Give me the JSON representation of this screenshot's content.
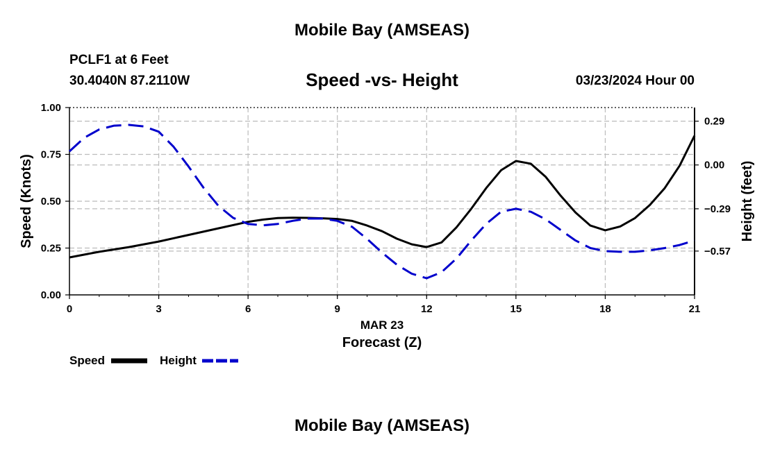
{
  "header": {
    "main_title": "Mobile Bay (AMSEAS)",
    "station": "PCLF1 at 6 Feet",
    "coordinates": "30.4040N  87.2110W",
    "subtitle": "Speed -vs- Height",
    "datetime": "03/23/2024 Hour 00"
  },
  "footer": {
    "main_title": "Mobile Bay (AMSEAS)"
  },
  "colors": {
    "speed": "#000000",
    "height": "#0000cc",
    "grid": "#bbbbbb"
  },
  "chart_data": {
    "type": "line",
    "title": "Speed -vs- Height",
    "xlabel_date": "MAR 23",
    "xlabel": "Forecast (Z)",
    "ylabel_left": "Speed (Knots)",
    "ylabel_right": "Height (feet)",
    "xlim": [
      0,
      21
    ],
    "ylim_left": [
      0,
      1.0
    ],
    "ylim_right": [
      -0.86,
      0.38
    ],
    "x_ticks": [
      "0",
      "3",
      "6",
      "9",
      "12",
      "15",
      "18",
      "21"
    ],
    "x_tick_values": [
      0,
      3,
      6,
      9,
      12,
      15,
      18,
      21
    ],
    "y_left_ticks": [
      "0.00",
      "0.25",
      "0.50",
      "0.75",
      "1.00"
    ],
    "y_left_tick_values": [
      0,
      0.25,
      0.5,
      0.75,
      1.0
    ],
    "y_right_ticks": [
      "0.29",
      "0.00",
      "−0.29",
      "−0.57"
    ],
    "y_right_tick_values": [
      0.29,
      0.0,
      -0.29,
      -0.57
    ],
    "grid": true,
    "legend_position": "bottom-left",
    "series": [
      {
        "name": "Speed",
        "axis": "left",
        "style": "solid",
        "x": [
          0,
          1,
          2,
          3,
          4,
          5,
          6,
          6.5,
          7,
          7.5,
          8,
          8.5,
          9,
          9.5,
          10,
          10.5,
          11,
          11.5,
          12,
          12.5,
          13,
          13.5,
          14,
          14.5,
          15,
          15.5,
          16,
          16.5,
          17,
          17.5,
          18,
          18.5,
          19,
          19.5,
          20,
          20.5,
          21
        ],
        "values": [
          0.2,
          0.23,
          0.255,
          0.285,
          0.32,
          0.355,
          0.39,
          0.402,
          0.41,
          0.412,
          0.411,
          0.409,
          0.405,
          0.395,
          0.37,
          0.34,
          0.3,
          0.27,
          0.255,
          0.28,
          0.36,
          0.46,
          0.57,
          0.665,
          0.715,
          0.7,
          0.63,
          0.53,
          0.44,
          0.37,
          0.345,
          0.365,
          0.41,
          0.48,
          0.57,
          0.69,
          0.85
        ]
      },
      {
        "name": "Height",
        "axis": "right",
        "style": "dashed",
        "x": [
          0,
          0.5,
          1,
          1.5,
          2,
          2.5,
          3,
          3.5,
          4,
          4.5,
          5,
          5.5,
          6,
          6.5,
          7,
          7.5,
          8,
          8.5,
          9,
          9.5,
          10,
          10.5,
          11,
          11.5,
          12,
          12.5,
          13,
          13.5,
          14,
          14.5,
          15,
          15.5,
          16,
          16.5,
          17,
          17.5,
          18,
          18.5,
          19,
          19.5,
          20,
          20.5,
          21
        ],
        "values": [
          0.09,
          0.18,
          0.235,
          0.26,
          0.265,
          0.255,
          0.22,
          0.12,
          -0.01,
          -0.15,
          -0.27,
          -0.35,
          -0.39,
          -0.4,
          -0.39,
          -0.37,
          -0.355,
          -0.355,
          -0.37,
          -0.41,
          -0.49,
          -0.58,
          -0.66,
          -0.72,
          -0.75,
          -0.71,
          -0.62,
          -0.5,
          -0.39,
          -0.31,
          -0.29,
          -0.31,
          -0.36,
          -0.43,
          -0.5,
          -0.55,
          -0.57,
          -0.575,
          -0.575,
          -0.565,
          -0.55,
          -0.53,
          -0.5
        ]
      }
    ]
  }
}
